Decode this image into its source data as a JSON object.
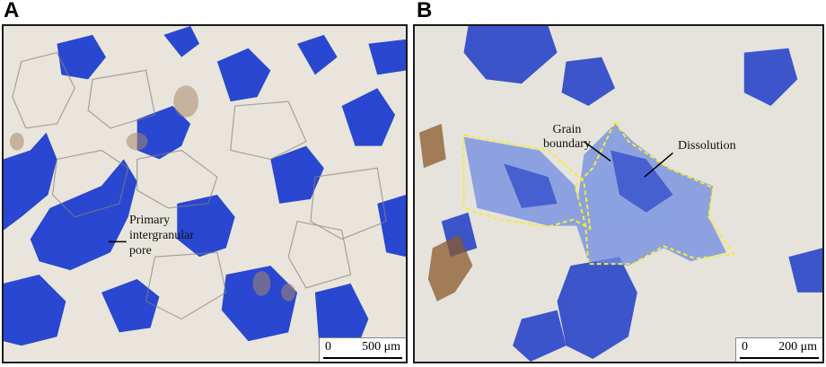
{
  "panel_a": {
    "letter": "A",
    "annotation": [
      "Primary",
      "intergranular",
      "pore"
    ],
    "scale_zero": "0",
    "scale_value": "500 μm"
  },
  "panel_b": {
    "letter": "B",
    "annotation_grain": [
      "Grain",
      "boundary"
    ],
    "annotation_dissolution": "Dissolution",
    "scale_zero": "0",
    "scale_value": "200 μm"
  },
  "colors": {
    "pore_blue": "#1f3fd0",
    "grain": "#e8e4da",
    "outline": "#f2ec3a"
  }
}
